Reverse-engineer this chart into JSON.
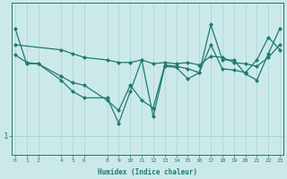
{
  "xlabel": "Humidex (Indice chaleur)",
  "bg_color": "#cce9ea",
  "line_color": "#1e7a70",
  "grid_color": "#a8d4d5",
  "x_ticks": [
    0,
    1,
    2,
    4,
    5,
    6,
    8,
    9,
    10,
    11,
    12,
    13,
    14,
    15,
    16,
    17,
    18,
    19,
    20,
    21,
    22,
    23
  ],
  "line1_x": [
    0,
    4,
    5,
    6,
    8,
    9,
    10,
    11,
    12,
    13,
    14,
    15,
    16,
    17,
    18,
    19,
    20,
    21,
    22,
    23
  ],
  "line1_y": [
    1.72,
    1.68,
    1.65,
    1.62,
    1.6,
    1.58,
    1.58,
    1.6,
    1.57,
    1.58,
    1.57,
    1.58,
    1.56,
    1.63,
    1.62,
    1.58,
    1.57,
    1.55,
    1.62,
    1.72
  ],
  "line2_x": [
    0,
    1,
    2,
    4,
    5,
    6,
    8,
    9,
    10,
    11,
    12,
    13,
    14,
    15,
    16,
    17,
    18,
    19,
    20,
    21,
    22,
    23
  ],
  "line2_y": [
    1.64,
    1.58,
    1.57,
    1.47,
    1.42,
    1.4,
    1.28,
    1.2,
    1.4,
    1.28,
    1.22,
    1.56,
    1.55,
    1.53,
    1.5,
    1.72,
    1.53,
    1.52,
    1.5,
    1.6,
    1.78,
    1.68
  ],
  "line3_x": [
    0,
    1,
    2,
    4,
    5,
    6,
    8,
    9,
    10,
    11,
    12,
    13,
    14,
    15,
    16,
    17,
    18,
    19,
    20,
    21,
    22,
    23
  ],
  "line3_y": [
    1.85,
    1.57,
    1.57,
    1.44,
    1.35,
    1.3,
    1.3,
    1.1,
    1.35,
    1.6,
    1.15,
    1.55,
    1.54,
    1.45,
    1.5,
    1.88,
    1.6,
    1.6,
    1.49,
    1.44,
    1.65,
    1.85
  ],
  "ylim": [
    0.85,
    2.05
  ],
  "xlim": [
    -0.3,
    23.3
  ],
  "ytick_pos": 1.0,
  "ytick_label": "1"
}
